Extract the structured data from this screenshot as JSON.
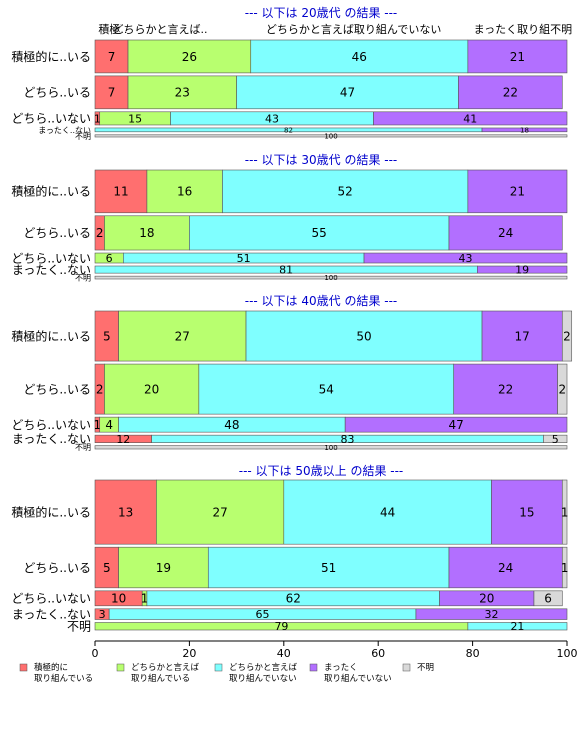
{
  "chart_data": {
    "type": "bar",
    "orientation": "horizontal-stacked",
    "x_ticks": [
      0,
      20,
      40,
      60,
      80,
      100
    ],
    "xlim": [
      0,
      100
    ],
    "legend_position": "bottom-left",
    "colors": [
      "#ff6f6f",
      "#b8ff6f",
      "#7fffff",
      "#b26fff",
      "#d9d9d9"
    ],
    "legend": [
      {
        "line1": "積極的に",
        "line2": "取り組んでいる",
        "color": "#ff6f6f"
      },
      {
        "line1": "どちらかと言えば",
        "line2": "取り組んでいる",
        "color": "#b8ff6f"
      },
      {
        "line1": "どちらかと言えば",
        "line2": "取り組んでいない",
        "color": "#7fffff"
      },
      {
        "line1": "まったく",
        "line2": "取り組んでいない",
        "color": "#b26fff"
      },
      {
        "line1": "不明",
        "line2": "",
        "color": "#d9d9d9"
      }
    ],
    "header_labels": [
      {
        "text": "積極..",
        "x": 0.5
      },
      {
        "text": "どちらかと言えば..",
        "x": 3.5
      },
      {
        "text": "どちらかと言えば取り組んでいない",
        "x": 36
      },
      {
        "text": "まったく取り組不明",
        "x": 80
      }
    ],
    "panels": [
      {
        "title": "--- 以下は 20歳代 の結果 ---",
        "rows": [
          {
            "label": "積極的に..いる",
            "values": [
              7,
              26,
              46,
              21,
              0
            ],
            "weight": 3
          },
          {
            "label": "どちら..いる",
            "values": [
              7,
              23,
              47,
              22,
              0
            ],
            "weight": 3
          },
          {
            "label": "どちら..いない",
            "values": [
              1,
              15,
              43,
              41,
              0
            ],
            "weight": 1.2
          },
          {
            "label": "まったく..ない",
            "values": [
              0,
              0,
              82,
              18,
              0
            ],
            "weight": 0.35
          },
          {
            "label": "不明",
            "values": [
              0,
              0,
              0,
              0,
              100
            ],
            "weight": 0.2
          }
        ]
      },
      {
        "title": "--- 以下は 30歳代 の結果 ---",
        "rows": [
          {
            "label": "積極的に..いる",
            "values": [
              11,
              16,
              52,
              21,
              0
            ],
            "weight": 3
          },
          {
            "label": "どちら..いる",
            "values": [
              2,
              18,
              55,
              24,
              0
            ],
            "weight": 2.4
          },
          {
            "label": "どちら..いない",
            "values": [
              0,
              6,
              51,
              43,
              0
            ],
            "weight": 0.7
          },
          {
            "label": "まったく..ない",
            "values": [
              0,
              0,
              81,
              19,
              0
            ],
            "weight": 0.5
          },
          {
            "label": "不明",
            "values": [
              0,
              0,
              0,
              0,
              100
            ],
            "weight": 0.2
          }
        ]
      },
      {
        "title": "--- 以下は 40歳代 の結果 ---",
        "rows": [
          {
            "label": "積極的に..いる",
            "values": [
              5,
              27,
              50,
              17,
              2
            ],
            "weight": 3
          },
          {
            "label": "どちら..いる",
            "values": [
              2,
              20,
              54,
              22,
              2
            ],
            "weight": 3
          },
          {
            "label": "どちら..いない",
            "values": [
              1,
              4,
              48,
              47,
              0
            ],
            "weight": 0.9
          },
          {
            "label": "まったく..ない",
            "values": [
              12,
              0,
              83,
              0,
              5
            ],
            "weight": 0.45
          },
          {
            "label": "不明",
            "values": [
              0,
              0,
              0,
              0,
              100
            ],
            "weight": 0.2
          }
        ]
      },
      {
        "title": "--- 以下は 50歳以上 の結果 ---",
        "rows": [
          {
            "label": "積極的に..いる",
            "values": [
              13,
              27,
              44,
              15,
              1
            ],
            "weight": 3
          },
          {
            "label": "どちら..いる",
            "values": [
              5,
              19,
              51,
              24,
              1
            ],
            "weight": 1.9
          },
          {
            "label": "どちら..いない",
            "values": [
              10,
              1,
              62,
              20,
              6
            ],
            "weight": 0.7
          },
          {
            "label": "まったく..ない",
            "values": [
              3,
              0,
              65,
              32,
              0
            ],
            "weight": 0.5
          },
          {
            "label": "不明",
            "values": [
              0,
              79,
              21,
              0,
              0
            ],
            "weight": 0.35
          }
        ]
      }
    ]
  }
}
